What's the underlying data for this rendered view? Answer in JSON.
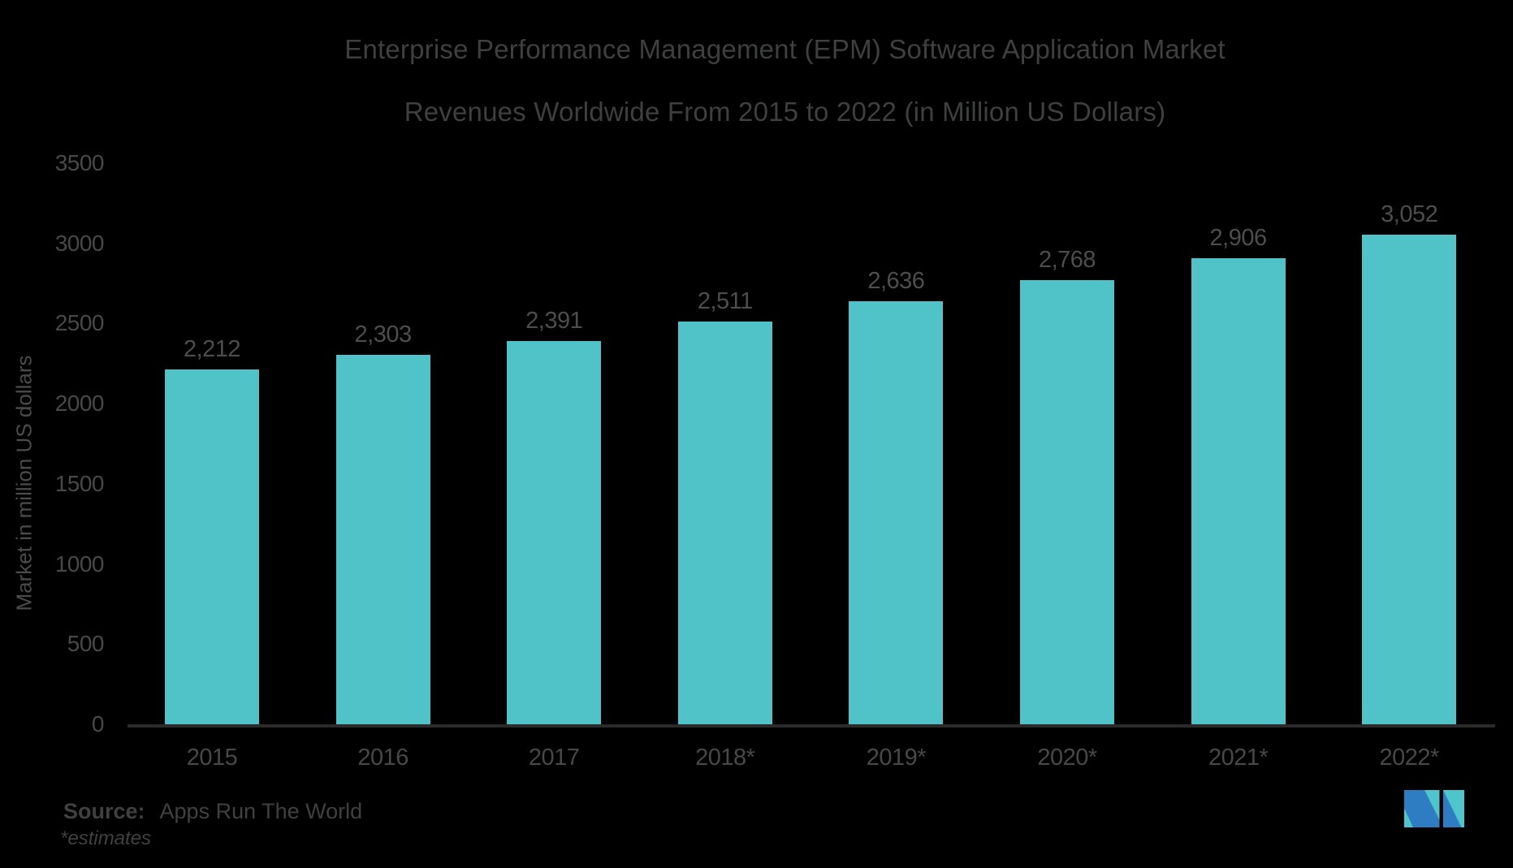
{
  "title": {
    "line1": "Enterprise Performance Management (EPM) Software Application Market",
    "line2": "Revenues Worldwide From 2015 to 2022 (in Million US Dollars)"
  },
  "source": {
    "label": "Source:",
    "text": "Apps Run The World",
    "note": "*estimates"
  },
  "logo": {
    "name": "mordor-intelligence-logo"
  },
  "colors": {
    "background": "#000000",
    "bar": "#4FC3C8",
    "title_text": "#3D3F41",
    "axis_text": "#47484A",
    "value_text": "#4B4D4F",
    "axis_line": "#2B2B2B",
    "source_text": "#3E4042",
    "logo_teal": "#4EC5CB",
    "logo_blue": "#2E7DC2"
  },
  "chart_data": {
    "type": "bar",
    "title": "Enterprise Performance Management (EPM) Software Application Market Revenues Worldwide From 2015 to 2022 (in Million US Dollars)",
    "categories": [
      "2015",
      "2016",
      "2017",
      "2018*",
      "2019*",
      "2020*",
      "2021*",
      "2022*"
    ],
    "values": [
      2212,
      2303,
      2391,
      2511,
      2636,
      2768,
      2906,
      3052
    ],
    "value_labels": [
      "2,212",
      "2,303",
      "2,391",
      "2,511",
      "2,636",
      "2,768",
      "2,906",
      "3,052"
    ],
    "xlabel": "",
    "ylabel": "Market in million US dollars",
    "ylim": [
      0,
      3500
    ],
    "ytick_step": 500,
    "ytick_labels": [
      "3500",
      "3000",
      "2500",
      "2000",
      "1500",
      "1000",
      "500",
      "0"
    ],
    "grid": false,
    "legend": false,
    "bar_color": "#4FC3C8",
    "background": "#000000"
  }
}
